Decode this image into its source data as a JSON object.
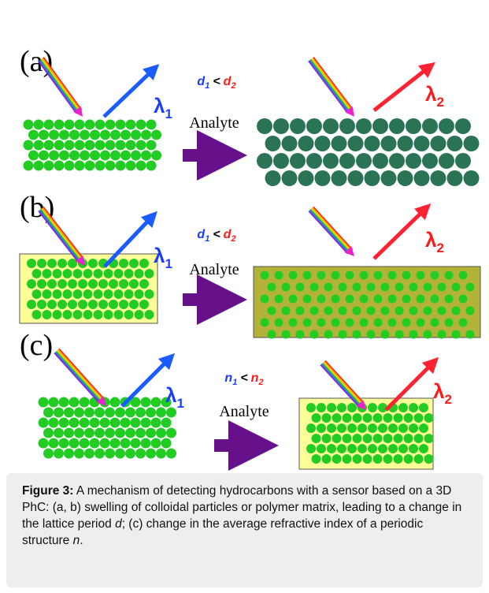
{
  "panels": [
    {
      "label": "(a)",
      "incident_label": {
        "symbol": "λ",
        "subscript": "1"
      },
      "reflected_label": {
        "symbol": "λ",
        "subscript": "2"
      },
      "relation": {
        "left": "d",
        "left_subscript": "1",
        "operator": "<",
        "right": "d",
        "right_subscript": "2"
      },
      "stimulus": "Analyte"
    },
    {
      "label": "(b)",
      "incident_label": {
        "symbol": "λ",
        "subscript": "1"
      },
      "reflected_label": {
        "symbol": "λ",
        "subscript": "2"
      },
      "relation": {
        "left": "d",
        "left_subscript": "1",
        "operator": "<",
        "right": "d",
        "right_subscript": "2"
      },
      "stimulus": "Analyte"
    },
    {
      "label": "(c)",
      "incident_label": {
        "symbol": "λ",
        "subscript": "1"
      },
      "reflected_label": {
        "symbol": "λ",
        "subscript": "2"
      },
      "relation": {
        "left": "n",
        "left_subscript": "1",
        "operator": "<",
        "right": "n",
        "right_subscript": "2"
      },
      "stimulus": "Analyte"
    }
  ],
  "caption": {
    "label": "Figure 3:",
    "text1": "A mechanism of detecting hydrocarbons with a sensor based on a 3D PhC: (a, b) swelling of colloidal particles or polymer matrix, leading to a change in the lattice period",
    "var1": "d",
    "text2": "; (c) change in the average refractive index of a periodic structure",
    "var2": "n",
    "text3": "."
  }
}
